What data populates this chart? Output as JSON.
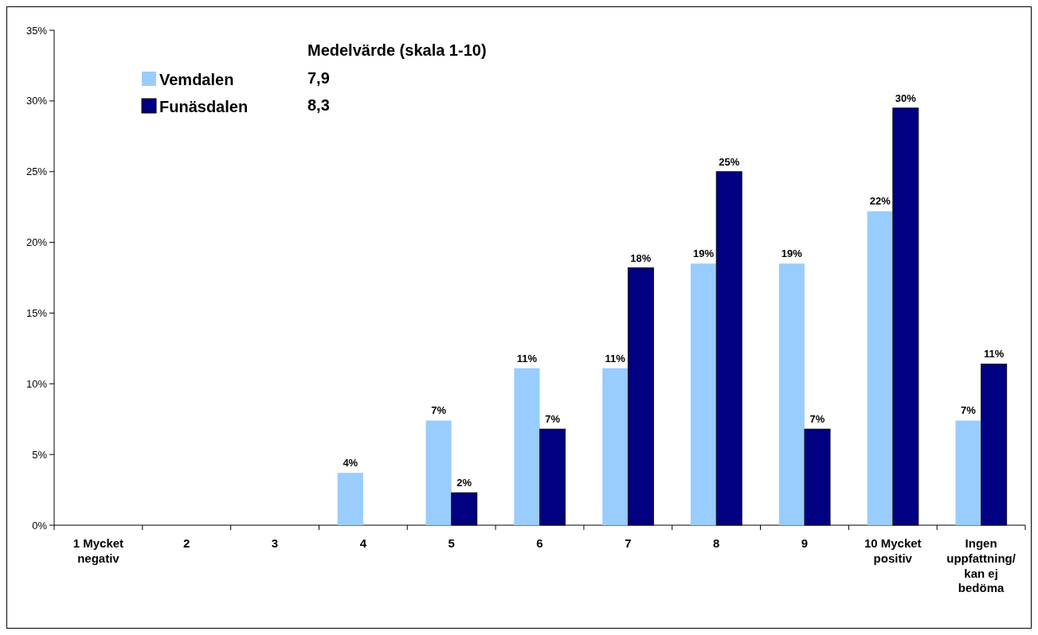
{
  "chart_data": {
    "type": "bar",
    "legend_title": "Medelvärde (skala 1-10)",
    "categories": [
      "1 Mycket negativ",
      "2",
      "3",
      "4",
      "5",
      "6",
      "7",
      "8",
      "9",
      "10 Mycket positiv",
      "Ingen uppfattning/ kan ej bedöma"
    ],
    "series": [
      {
        "name": "Vemdalen",
        "color": "#99ccff",
        "values": [
          0,
          0,
          0,
          3.7,
          7.4,
          11.1,
          11.1,
          18.5,
          18.5,
          22.2,
          7.4
        ],
        "value_labels": [
          null,
          null,
          null,
          "4%",
          "7%",
          "11%",
          "11%",
          "19%",
          "19%",
          "22%",
          "7%"
        ]
      },
      {
        "name": "Funäsdalen",
        "color": "#000080",
        "values": [
          0,
          0,
          0,
          0,
          2.3,
          6.8,
          18.2,
          25,
          6.8,
          29.5,
          11.4
        ],
        "value_labels": [
          null,
          null,
          null,
          null,
          "2%",
          "7%",
          "18%",
          "25%",
          "7%",
          "30%",
          "11%"
        ]
      }
    ],
    "annotations": [
      "7,9",
      "8,3"
    ],
    "ylim": [
      0,
      35
    ],
    "yticks": [
      {
        "value": 0,
        "label": "0%"
      },
      {
        "value": 5,
        "label": "5%"
      },
      {
        "value": 10,
        "label": "10%"
      },
      {
        "value": 15,
        "label": "15%"
      },
      {
        "value": 20,
        "label": "20%"
      },
      {
        "value": 25,
        "label": "25%"
      },
      {
        "value": 30,
        "label": "30%"
      },
      {
        "value": 35,
        "label": "35%"
      }
    ],
    "grid": false,
    "legend": "top left"
  }
}
